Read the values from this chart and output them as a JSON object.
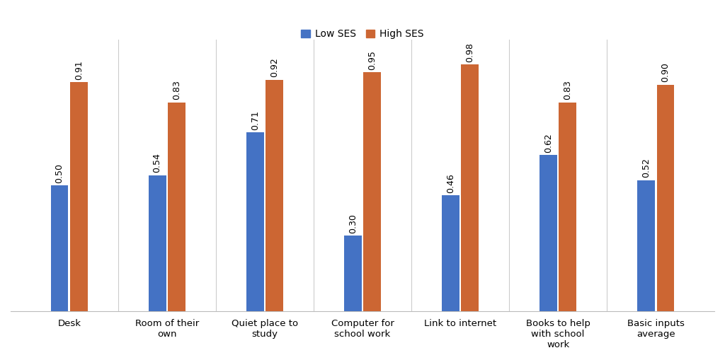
{
  "categories": [
    "Desk",
    "Room of their\nown",
    "Quiet place to\nstudy",
    "Computer for\nschool work",
    "Link to internet",
    "Books to help\nwith school\nwork",
    "Basic inputs\naverage"
  ],
  "low_ses": [
    0.5,
    0.54,
    0.71,
    0.3,
    0.46,
    0.62,
    0.52
  ],
  "high_ses": [
    0.91,
    0.83,
    0.92,
    0.95,
    0.98,
    0.83,
    0.9
  ],
  "low_color": "#4472C4",
  "high_color": "#CC6633",
  "background_color": "#FFFFFF",
  "ylim": [
    0,
    1.08
  ],
  "bar_width": 0.18,
  "legend_labels": [
    "Low SES",
    "High SES"
  ],
  "label_fontsize": 10,
  "tick_fontsize": 9.5,
  "value_fontsize": 9,
  "figsize": [
    10.24,
    5.09
  ],
  "dpi": 100
}
